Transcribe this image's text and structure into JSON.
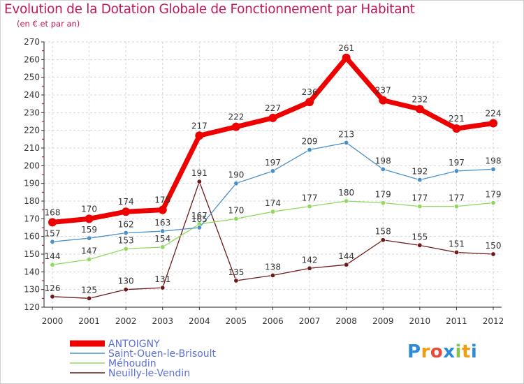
{
  "header": {
    "title": "Evolution de la Dotation Globale de Fonctionnement par Habitant",
    "subtitle": "(en € et par an)"
  },
  "logo": {
    "text": "Proxiti",
    "letters": [
      "P",
      "r",
      "o",
      "x",
      "i",
      "t",
      "i"
    ],
    "colors": [
      "#2e8bd8",
      "#f39c12",
      "#e74c3c",
      "#2e8bd8",
      "#8bc34a",
      "#f39c12",
      "#2e8bd8"
    ]
  },
  "chart_data": {
    "type": "line",
    "x": [
      "2000",
      "2001",
      "2002",
      "2003",
      "2004",
      "2005",
      "2006",
      "2007",
      "2008",
      "2009",
      "2010",
      "2011",
      "2012"
    ],
    "ylim": [
      120,
      270
    ],
    "yticks": [
      120,
      130,
      140,
      150,
      160,
      170,
      180,
      190,
      200,
      210,
      220,
      230,
      240,
      250,
      260,
      270
    ],
    "grid": true,
    "legend_position": "bottom-left",
    "series": [
      {
        "name": "ANTOIGNY",
        "color": "#ee0000",
        "values": [
          168,
          170,
          174,
          175,
          217,
          222,
          227,
          236,
          261,
          237,
          232,
          221,
          224
        ]
      },
      {
        "name": "Saint-Ouen-le-Brisoult",
        "color": "#4a90c8",
        "values": [
          157,
          159,
          162,
          163,
          165,
          190,
          197,
          209,
          213,
          198,
          192,
          197,
          198
        ]
      },
      {
        "name": "Méhoudin",
        "color": "#90d860",
        "values": [
          144,
          147,
          153,
          154,
          167,
          170,
          174,
          177,
          180,
          179,
          177,
          177,
          179
        ]
      },
      {
        "name": "Neuilly-le-Vendin",
        "color": "#6e1a1a",
        "values": [
          126,
          125,
          130,
          131,
          191,
          135,
          138,
          142,
          144,
          158,
          155,
          151,
          150
        ]
      }
    ]
  }
}
